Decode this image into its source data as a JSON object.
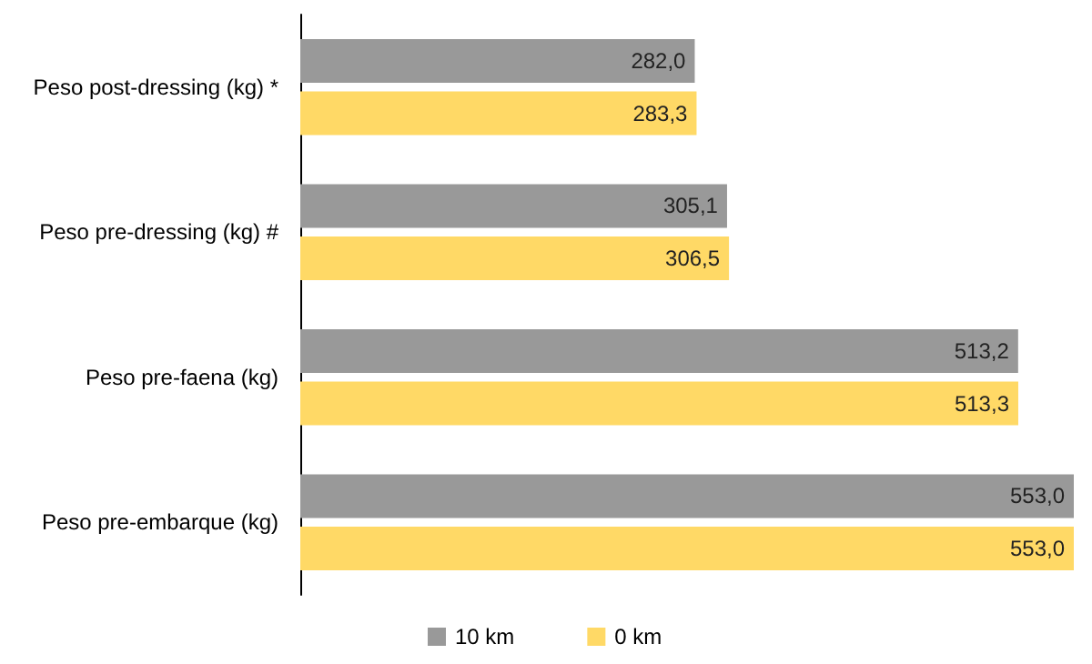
{
  "chart_data": {
    "type": "bar",
    "orientation": "horizontal",
    "categories": [
      "Peso post-dressing (kg) *",
      "Peso pre-dressing (kg) #",
      "Peso pre-faena (kg)",
      "Peso pre-embarque (kg)"
    ],
    "series": [
      {
        "name": "10 km",
        "color": "#999999",
        "values": [
          282.0,
          305.1,
          513.2,
          553.0
        ],
        "value_labels": [
          "282,0",
          "305,1",
          "513,2",
          "553,0"
        ]
      },
      {
        "name": "0 km",
        "color": "#ffd966",
        "values": [
          283.3,
          306.5,
          513.3,
          553.0
        ],
        "value_labels": [
          "283,3",
          "306,5",
          "513,3",
          "553,0"
        ]
      }
    ],
    "xlim": [
      0,
      553
    ],
    "tick_labels": "y",
    "grid": false,
    "legend": "bottom"
  }
}
